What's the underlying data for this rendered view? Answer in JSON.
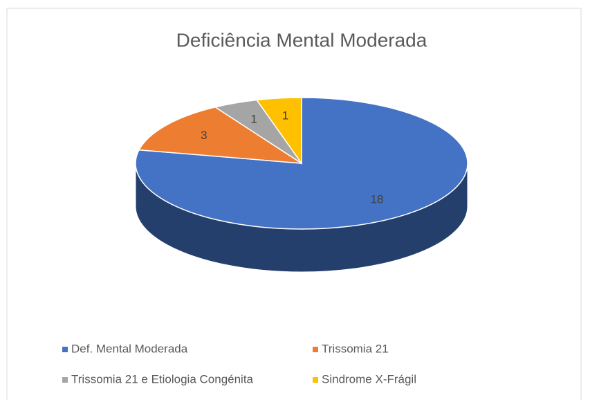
{
  "chart_data": {
    "type": "pie",
    "title": "Deficiência Mental Moderada",
    "categories": [
      "Def. Mental Moderada",
      "Trissomia 21",
      "Trissomia 21 e Etiologia Congénita",
      "Sindrome X-Frágil"
    ],
    "values": [
      18,
      3,
      1,
      1
    ],
    "colors": [
      "#4472c4",
      "#ed7d31",
      "#a5a5a5",
      "#ffc000"
    ],
    "legend": "bottom"
  }
}
